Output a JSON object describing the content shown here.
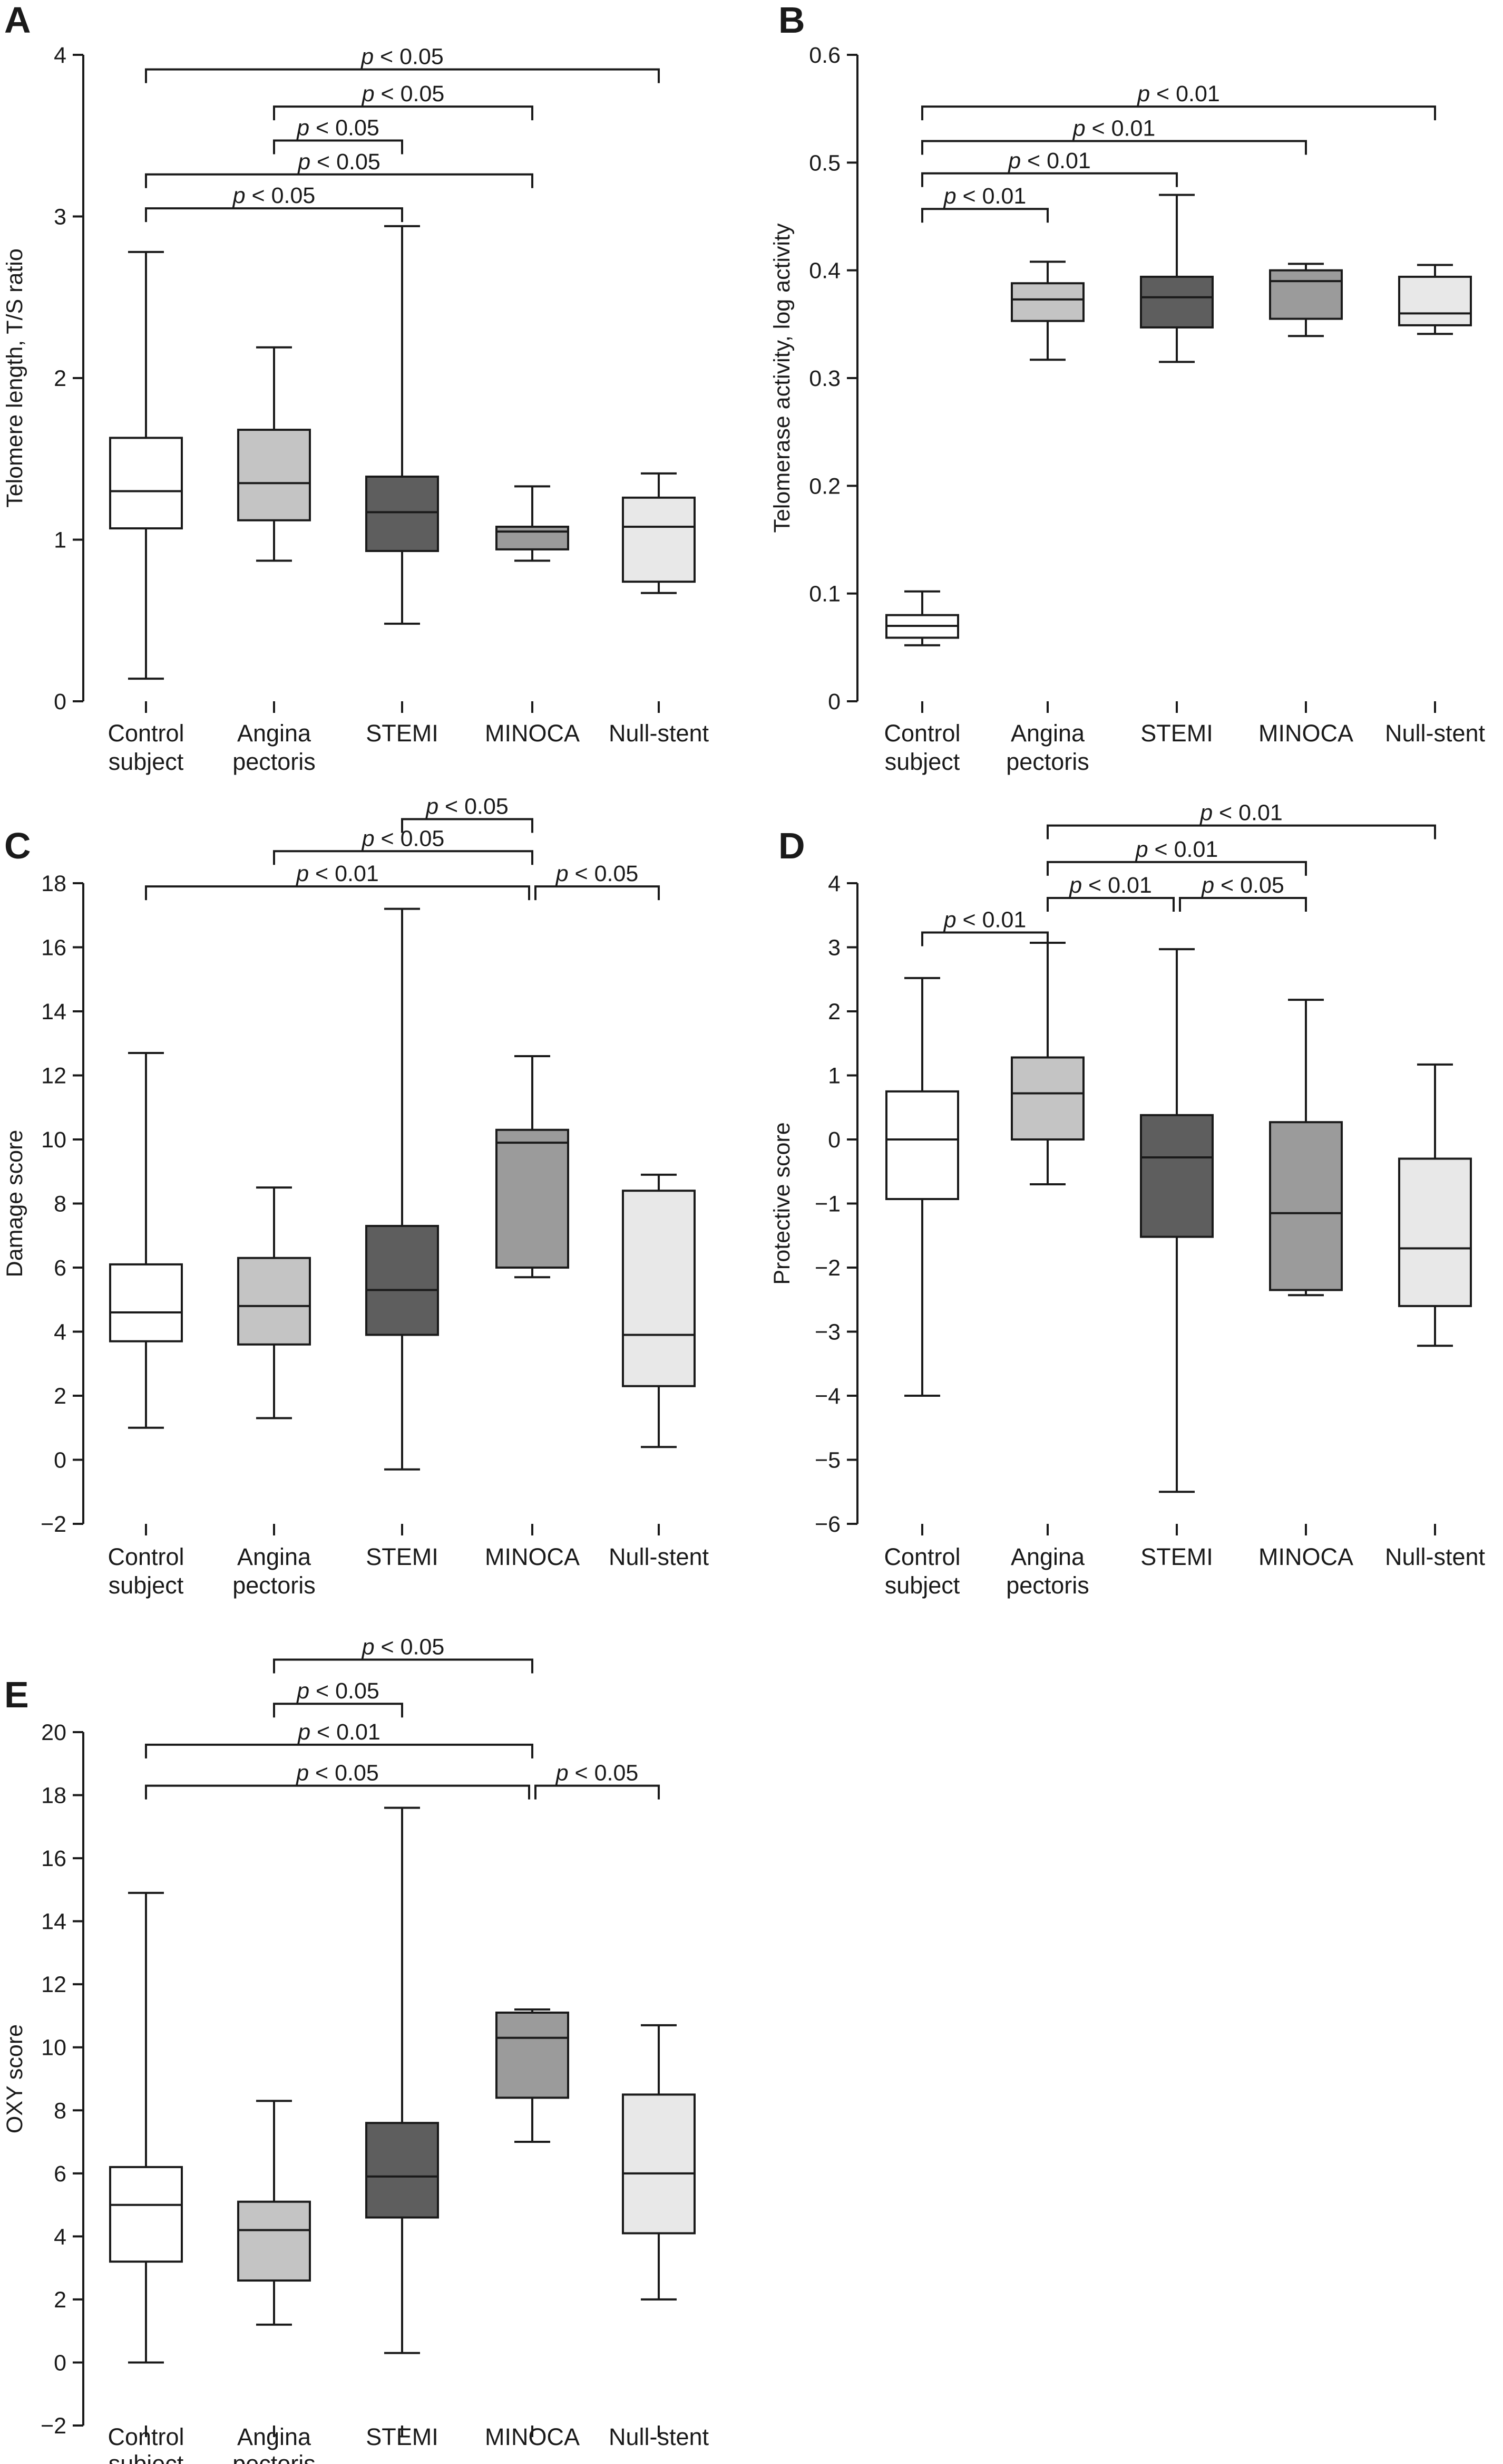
{
  "figure": {
    "colors": {
      "axis": "#1a1a1a",
      "background": "#ffffff"
    }
  },
  "group_colors": [
    "#ffffff",
    "#c4c4c4",
    "#5e5e5e",
    "#9b9b9b",
    "#e8e8e8"
  ],
  "chart_data": [
    {
      "panel": "A",
      "type": "box",
      "categories": [
        [
          "Control",
          "subject"
        ],
        [
          "Angina",
          "pectoris"
        ],
        [
          "STEMI"
        ],
        [
          "MINOCA"
        ],
        [
          "Null-stent"
        ]
      ],
      "ylabel": "Telomere length, T/S ratio",
      "ylim": [
        0,
        4
      ],
      "yticks": [
        0,
        1,
        2,
        3,
        4
      ],
      "series": [
        {
          "name": "Control subject",
          "min": 0.14,
          "q1": 1.07,
          "median": 1.3,
          "q3": 1.63,
          "max": 2.78
        },
        {
          "name": "Angina pectoris",
          "min": 0.87,
          "q1": 1.12,
          "median": 1.35,
          "q3": 1.68,
          "max": 2.19
        },
        {
          "name": "STEMI",
          "min": 0.48,
          "q1": 0.93,
          "median": 1.17,
          "q3": 1.39,
          "max": 2.94
        },
        {
          "name": "MINOCA",
          "min": 0.87,
          "q1": 0.94,
          "median": 1.05,
          "q3": 1.08,
          "max": 1.33
        },
        {
          "name": "Null-stent",
          "min": 0.67,
          "q1": 0.74,
          "median": 1.08,
          "q3": 1.26,
          "max": 1.41
        }
      ],
      "comparisons": [
        {
          "from": 0,
          "to": 4,
          "y": 3.91,
          "label": "< 0.05"
        },
        {
          "from": 1,
          "to": 3,
          "y": 3.68,
          "label": "< 0.05"
        },
        {
          "from": 1,
          "to": 2,
          "y": 3.47,
          "label": "< 0.05"
        },
        {
          "from": 0,
          "to": 3,
          "y": 3.26,
          "label": "< 0.05"
        },
        {
          "from": 0,
          "to": 2,
          "y": 3.05,
          "label": "< 0.05"
        }
      ]
    },
    {
      "panel": "B",
      "type": "box",
      "categories": [
        [
          "Control",
          "subject"
        ],
        [
          "Angina",
          "pectoris"
        ],
        [
          "STEMI"
        ],
        [
          "MINOCA"
        ],
        [
          "Null-stent"
        ]
      ],
      "ylabel": "Telomerase activity, log activity",
      "ylim": [
        0,
        0.6
      ],
      "yticks": [
        0,
        0.1,
        0.2,
        0.3,
        0.4,
        0.5,
        0.6
      ],
      "series": [
        {
          "name": "Control subject",
          "min": 0.052,
          "q1": 0.059,
          "median": 0.07,
          "q3": 0.08,
          "max": 0.102
        },
        {
          "name": "Angina pectoris",
          "min": 0.317,
          "q1": 0.353,
          "median": 0.373,
          "q3": 0.388,
          "max": 0.408
        },
        {
          "name": "STEMI",
          "min": 0.315,
          "q1": 0.347,
          "median": 0.375,
          "q3": 0.394,
          "max": 0.47
        },
        {
          "name": "MINOCA",
          "min": 0.339,
          "q1": 0.355,
          "median": 0.39,
          "q3": 0.4,
          "max": 0.406
        },
        {
          "name": "Null-stent",
          "min": 0.341,
          "q1": 0.349,
          "median": 0.36,
          "q3": 0.394,
          "max": 0.405
        }
      ],
      "comparisons": [
        {
          "from": 0,
          "to": 4,
          "y": 0.552,
          "label": "< 0.01"
        },
        {
          "from": 0,
          "to": 3,
          "y": 0.52,
          "label": "< 0.01"
        },
        {
          "from": 0,
          "to": 2,
          "y": 0.49,
          "label": "< 0.01"
        },
        {
          "from": 0,
          "to": 1,
          "y": 0.457,
          "label": "< 0.01"
        }
      ]
    },
    {
      "panel": "C",
      "type": "box",
      "categories": [
        [
          "Control",
          "subject"
        ],
        [
          "Angina",
          "pectoris"
        ],
        [
          "STEMI"
        ],
        [
          "MINOCA"
        ],
        [
          "Null-stent"
        ]
      ],
      "ylabel": "Damage score",
      "ylim": [
        -2,
        18
      ],
      "yticks": [
        -2,
        0,
        2,
        4,
        6,
        8,
        10,
        12,
        14,
        16,
        18
      ],
      "series": [
        {
          "name": "Control subject",
          "min": 1.0,
          "q1": 3.7,
          "median": 4.6,
          "q3": 6.1,
          "max": 12.7
        },
        {
          "name": "Angina pectoris",
          "min": 1.3,
          "q1": 3.6,
          "median": 4.8,
          "q3": 6.3,
          "max": 8.5
        },
        {
          "name": "STEMI",
          "min": -0.3,
          "q1": 3.9,
          "median": 5.3,
          "q3": 7.3,
          "max": 17.2
        },
        {
          "name": "MINOCA",
          "min": 5.7,
          "q1": 6.0,
          "median": 9.9,
          "q3": 10.3,
          "max": 12.6
        },
        {
          "name": "Null-stent",
          "min": 0.4,
          "q1": 2.3,
          "median": 3.9,
          "q3": 8.4,
          "max": 8.9
        }
      ],
      "comparisons": [
        {
          "from": 2,
          "to": 3,
          "y": 20.0,
          "label": "< 0.05"
        },
        {
          "from": 1,
          "to": 3,
          "y": 19.0,
          "label": "< 0.05"
        },
        {
          "from": 0,
          "to": 3,
          "y": 17.9,
          "label": "< 0.01"
        },
        {
          "from": 3,
          "to": 4,
          "y": 17.9,
          "label": "< 0.05"
        }
      ]
    },
    {
      "panel": "D",
      "type": "box",
      "categories": [
        [
          "Control",
          "subject"
        ],
        [
          "Angina",
          "pectoris"
        ],
        [
          "STEMI"
        ],
        [
          "MINOCA"
        ],
        [
          "Null-stent"
        ]
      ],
      "ylabel": "Protective score",
      "ylim": [
        -6,
        4
      ],
      "yticks": [
        -6,
        -5,
        -4,
        -3,
        -2,
        -1,
        0,
        1,
        2,
        3,
        4
      ],
      "series": [
        {
          "name": "Control subject",
          "min": -4.0,
          "q1": -0.93,
          "median": 0.0,
          "q3": 0.75,
          "max": 2.52
        },
        {
          "name": "Angina pectoris",
          "min": -0.7,
          "q1": 0.0,
          "median": 0.72,
          "q3": 1.28,
          "max": 3.07
        },
        {
          "name": "STEMI",
          "min": -5.5,
          "q1": -1.52,
          "median": -0.28,
          "q3": 0.38,
          "max": 2.97
        },
        {
          "name": "MINOCA",
          "min": -2.43,
          "q1": -2.35,
          "median": -1.15,
          "q3": 0.27,
          "max": 2.18
        },
        {
          "name": "Null-stent",
          "min": -3.22,
          "q1": -2.6,
          "median": -1.7,
          "q3": -0.3,
          "max": 1.17
        }
      ],
      "comparisons": [
        {
          "from": 1,
          "to": 4,
          "y": 4.9,
          "label": "< 0.01"
        },
        {
          "from": 1,
          "to": 3,
          "y": 4.33,
          "label": "< 0.01"
        },
        {
          "from": 1,
          "to": 2,
          "y": 3.77,
          "label": "< 0.01"
        },
        {
          "from": 2,
          "to": 3,
          "y": 3.77,
          "label": "< 0.05"
        },
        {
          "from": 0,
          "to": 1,
          "y": 3.23,
          "label": "< 0.01"
        }
      ]
    },
    {
      "panel": "E",
      "type": "box",
      "categories": [
        [
          "Control",
          "subject"
        ],
        [
          "Angina",
          "pectoris"
        ],
        [
          "STEMI"
        ],
        [
          "MINOCA"
        ],
        [
          "Null-stent"
        ]
      ],
      "ylabel": "OXY score",
      "ylim": [
        -2,
        20
      ],
      "yticks": [
        -2,
        0,
        2,
        4,
        6,
        8,
        10,
        12,
        14,
        16,
        18,
        20
      ],
      "series": [
        {
          "name": "Control subject",
          "min": 0.0,
          "q1": 3.2,
          "median": 5.0,
          "q3": 6.2,
          "max": 14.9
        },
        {
          "name": "Angina pectoris",
          "min": 1.2,
          "q1": 2.6,
          "median": 4.2,
          "q3": 5.1,
          "max": 8.3
        },
        {
          "name": "STEMI",
          "min": 0.3,
          "q1": 4.6,
          "median": 5.9,
          "q3": 7.6,
          "max": 17.6
        },
        {
          "name": "MINOCA",
          "min": 7.0,
          "q1": 8.4,
          "median": 10.3,
          "q3": 11.1,
          "max": 11.2
        },
        {
          "name": "Null-stent",
          "min": 2.0,
          "q1": 4.1,
          "median": 6.0,
          "q3": 8.5,
          "max": 10.7
        }
      ],
      "comparisons": [
        {
          "from": 1,
          "to": 3,
          "y": 22.3,
          "label": "< 0.05"
        },
        {
          "from": 1,
          "to": 2,
          "y": 20.9,
          "label": "< 0.05"
        },
        {
          "from": 0,
          "to": 3,
          "y": 19.6,
          "label": "< 0.01"
        },
        {
          "from": 0,
          "to": 3,
          "y": 18.3,
          "label": "< 0.05"
        },
        {
          "from": 3,
          "to": 4,
          "y": 18.3,
          "label": "< 0.05"
        }
      ]
    }
  ]
}
